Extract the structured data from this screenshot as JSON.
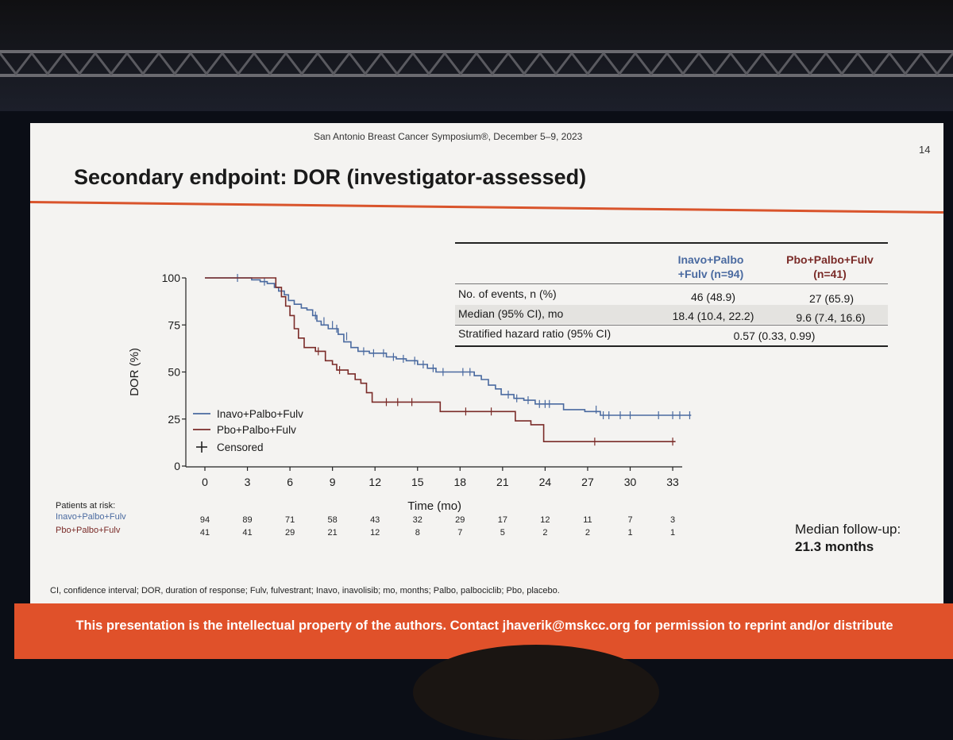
{
  "slide": {
    "conference": "San Antonio Breast Cancer Symposium®, December 5–9, 2023",
    "page_number": "14",
    "title": "Secondary endpoint: DOR (investigator-assessed)",
    "footnote": "CI, confidence interval; DOR, duration of response; Fulv, fulvestrant; Inavo, inavolisib; mo, months; Palbo, palbociclib; Pbo, placebo.",
    "banner": "This presentation is the intellectual property of the authors. Contact jhaverik@mskcc.org for permission to reprint and/or distribute",
    "median_followup_label": "Median follow-up:",
    "median_followup_value": "21.3 months"
  },
  "colors": {
    "inavo": "#4a6aa0",
    "pbo": "#7a2b28",
    "accent": "#e0512a"
  },
  "table": {
    "col1_header_line1": "Inavo+Palbo",
    "col1_header_line2": "+Fulv (n=94)",
    "col2_header_line1": "Pbo+Palbo+Fulv",
    "col2_header_line2": "(n=41)",
    "rows": [
      {
        "label": "No. of events, n (%)",
        "v1": "46 (48.9)",
        "v2": "27 (65.9)"
      },
      {
        "label": "Median (95% CI), mo",
        "v1": "18.4 (10.4, 22.2)",
        "v2": "9.6 (7.4, 16.6)"
      }
    ],
    "hr_label": "Stratified hazard ratio (95% CI)",
    "hr_value": "0.57 (0.33, 0.99)"
  },
  "at_risk": {
    "label": "Patients at risk:",
    "arms": [
      {
        "name": "Inavo+Palbo+Fulv",
        "counts": [
          "94",
          "89",
          "71",
          "58",
          "43",
          "32",
          "29",
          "17",
          "12",
          "11",
          "7",
          "3"
        ]
      },
      {
        "name": "Pbo+Palbo+Fulv",
        "counts": [
          "41",
          "41",
          "29",
          "21",
          "12",
          "8",
          "7",
          "5",
          "2",
          "2",
          "1",
          "1"
        ]
      }
    ]
  },
  "chart_data": {
    "type": "line",
    "title": "Secondary endpoint: DOR (investigator-assessed)",
    "xlabel": "Time (mo)",
    "ylabel": "DOR (%)",
    "xlim": [
      0,
      33
    ],
    "ylim": [
      0,
      100
    ],
    "x_ticks": [
      0,
      3,
      6,
      9,
      12,
      15,
      18,
      21,
      24,
      27,
      30,
      33
    ],
    "y_ticks": [
      0,
      25,
      50,
      75,
      100
    ],
    "x_tick_labels": [
      "0",
      "3",
      "6",
      "9",
      "12",
      "15",
      "18",
      "21",
      "24",
      "27",
      "30",
      "33"
    ],
    "y_tick_labels": [
      "0",
      "25",
      "50",
      "75",
      "100"
    ],
    "legend": [
      "Inavo+Palbo+Fulv",
      "Pbo+Palbo+Fulv",
      "Censored"
    ],
    "legend_position": "bottom-left",
    "series": [
      {
        "name": "Inavo+Palbo+Fulv",
        "color_key": "inavo",
        "step_points": [
          [
            0,
            100
          ],
          [
            3.3,
            100
          ],
          [
            3.3,
            99
          ],
          [
            3.9,
            99
          ],
          [
            3.9,
            98
          ],
          [
            4.4,
            98
          ],
          [
            4.4,
            97
          ],
          [
            4.9,
            97
          ],
          [
            4.9,
            95
          ],
          [
            5.2,
            95
          ],
          [
            5.2,
            93
          ],
          [
            5.6,
            93
          ],
          [
            5.6,
            91
          ],
          [
            5.9,
            91
          ],
          [
            5.9,
            88
          ],
          [
            6.3,
            88
          ],
          [
            6.3,
            86
          ],
          [
            6.8,
            86
          ],
          [
            6.8,
            84
          ],
          [
            7.2,
            84
          ],
          [
            7.2,
            83
          ],
          [
            7.6,
            83
          ],
          [
            7.6,
            80
          ],
          [
            7.9,
            80
          ],
          [
            7.9,
            77
          ],
          [
            8.2,
            77
          ],
          [
            8.2,
            75
          ],
          [
            8.7,
            75
          ],
          [
            8.7,
            73
          ],
          [
            9.4,
            73
          ],
          [
            9.4,
            70
          ],
          [
            9.8,
            70
          ],
          [
            9.8,
            66
          ],
          [
            10.3,
            66
          ],
          [
            10.3,
            63
          ],
          [
            10.8,
            63
          ],
          [
            10.8,
            61
          ],
          [
            11.6,
            61
          ],
          [
            11.6,
            60
          ],
          [
            12.8,
            60
          ],
          [
            12.8,
            58
          ],
          [
            13.5,
            58
          ],
          [
            13.5,
            57
          ],
          [
            14.2,
            57
          ],
          [
            14.2,
            56
          ],
          [
            15.0,
            56
          ],
          [
            15.0,
            54
          ],
          [
            15.7,
            54
          ],
          [
            15.7,
            52
          ],
          [
            16.3,
            52
          ],
          [
            16.3,
            50
          ],
          [
            19.0,
            50
          ],
          [
            19.0,
            48
          ],
          [
            19.5,
            48
          ],
          [
            19.5,
            46
          ],
          [
            20.0,
            46
          ],
          [
            20.0,
            43
          ],
          [
            20.5,
            43
          ],
          [
            20.5,
            41
          ],
          [
            20.9,
            41
          ],
          [
            20.9,
            38
          ],
          [
            21.8,
            38
          ],
          [
            21.8,
            36
          ],
          [
            22.5,
            36
          ],
          [
            22.5,
            35
          ],
          [
            23.3,
            35
          ],
          [
            23.3,
            33
          ],
          [
            25.3,
            33
          ],
          [
            25.3,
            30
          ],
          [
            26.8,
            30
          ],
          [
            26.8,
            29
          ],
          [
            27.9,
            29
          ],
          [
            27.9,
            27
          ],
          [
            34.3,
            27
          ]
        ],
        "censored": [
          [
            2.3,
            100
          ],
          [
            4.2,
            98
          ],
          [
            7.8,
            80
          ],
          [
            8.4,
            77
          ],
          [
            9.0,
            75
          ],
          [
            9.3,
            73
          ],
          [
            10.0,
            69
          ],
          [
            11.2,
            61
          ],
          [
            11.9,
            60
          ],
          [
            12.6,
            60
          ],
          [
            13.3,
            58
          ],
          [
            14.0,
            57
          ],
          [
            14.8,
            56
          ],
          [
            15.4,
            54
          ],
          [
            16.1,
            52
          ],
          [
            16.8,
            50
          ],
          [
            18.2,
            50
          ],
          [
            18.7,
            50
          ],
          [
            21.4,
            38
          ],
          [
            22.0,
            36
          ],
          [
            22.8,
            35
          ],
          [
            23.6,
            33
          ],
          [
            24.0,
            33
          ],
          [
            24.3,
            33
          ],
          [
            27.6,
            30
          ],
          [
            28.1,
            27
          ],
          [
            28.5,
            27
          ],
          [
            29.3,
            27
          ],
          [
            30.0,
            27
          ],
          [
            32.0,
            27
          ],
          [
            33.0,
            27
          ],
          [
            33.5,
            27
          ],
          [
            34.2,
            27
          ]
        ]
      },
      {
        "name": "Pbo+Palbo+Fulv",
        "color_key": "pbo",
        "step_points": [
          [
            0,
            100
          ],
          [
            5.0,
            100
          ],
          [
            5.0,
            95
          ],
          [
            5.4,
            95
          ],
          [
            5.4,
            90
          ],
          [
            5.7,
            90
          ],
          [
            5.7,
            85
          ],
          [
            6.0,
            85
          ],
          [
            6.0,
            80
          ],
          [
            6.3,
            80
          ],
          [
            6.3,
            73
          ],
          [
            6.6,
            73
          ],
          [
            6.6,
            68
          ],
          [
            7.0,
            68
          ],
          [
            7.0,
            63
          ],
          [
            7.8,
            63
          ],
          [
            7.8,
            61
          ],
          [
            8.5,
            61
          ],
          [
            8.5,
            56
          ],
          [
            9.0,
            56
          ],
          [
            9.0,
            54
          ],
          [
            9.3,
            54
          ],
          [
            9.3,
            51
          ],
          [
            10.1,
            51
          ],
          [
            10.1,
            49
          ],
          [
            10.6,
            49
          ],
          [
            10.6,
            46
          ],
          [
            11.0,
            46
          ],
          [
            11.0,
            44
          ],
          [
            11.4,
            44
          ],
          [
            11.4,
            39
          ],
          [
            11.8,
            39
          ],
          [
            11.8,
            34
          ],
          [
            16.6,
            34
          ],
          [
            16.6,
            29
          ],
          [
            21.9,
            29
          ],
          [
            21.9,
            24
          ],
          [
            23.0,
            24
          ],
          [
            23.0,
            22
          ],
          [
            23.9,
            22
          ],
          [
            23.9,
            13
          ],
          [
            33.2,
            13
          ]
        ],
        "censored": [
          [
            8.0,
            61
          ],
          [
            9.5,
            51
          ],
          [
            12.8,
            34
          ],
          [
            13.6,
            34
          ],
          [
            14.6,
            34
          ],
          [
            18.4,
            29
          ],
          [
            20.2,
            29
          ],
          [
            27.5,
            13
          ],
          [
            33.0,
            13
          ]
        ]
      }
    ]
  }
}
